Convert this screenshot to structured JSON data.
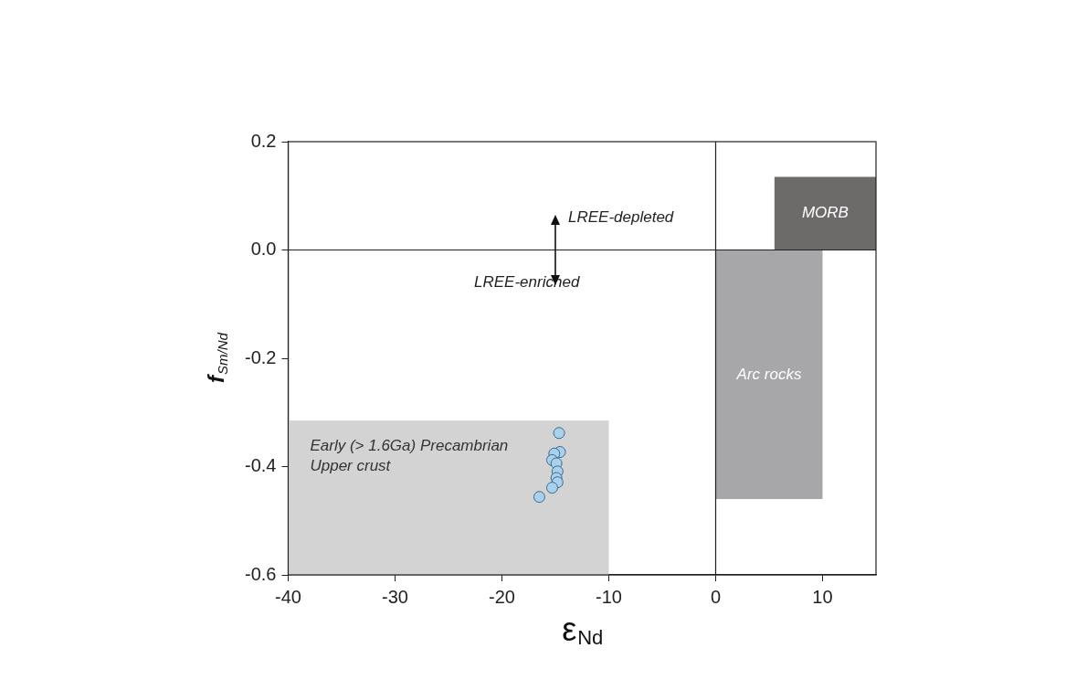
{
  "chart_data": {
    "type": "scatter",
    "x_label": "εNd",
    "y_label": "fSm/Nd",
    "xlim": [
      -40,
      15
    ],
    "xticks": [
      -40,
      -30,
      -20,
      -10,
      0,
      10
    ],
    "ylim": [
      -0.6,
      0.2
    ],
    "yticks": [
      -0.6,
      -0.4,
      -0.2,
      {
        "value": 0,
        "label": "0.0"
      },
      0.2
    ],
    "grid": false,
    "legend": false,
    "data_labels": false,
    "series": [
      {
        "color": "#a9d1ee",
        "marker": "circle",
        "x": [
          -16.5,
          -14.65,
          -14.57,
          -15.1,
          -15.3,
          -14.9,
          -14.8,
          -14.9,
          -14.8,
          -15.3
        ],
        "values": [
          -0.456,
          -0.338,
          -0.373,
          -0.376,
          -0.388,
          -0.394,
          -0.409,
          -0.421,
          -0.429,
          -0.439
        ]
      }
    ],
    "regions": [
      {
        "label": [
          "Early (> 1.6Ga) Precambrian",
          "Upper crust"
        ],
        "x": [
          -40,
          -10
        ],
        "y": [
          -0.6,
          -0.315
        ],
        "color": "#d3d3d3"
      },
      {
        "label": [
          "Arc rocks"
        ],
        "x": [
          0,
          10
        ],
        "y": [
          -0.46,
          0
        ],
        "color": "#a7a7a9"
      },
      {
        "label": [
          "MORB"
        ],
        "x": [
          5.5,
          15
        ],
        "y": [
          0,
          0.135
        ],
        "color": "#6d6a6a"
      }
    ],
    "reference_lines": {
      "x": [
        0
      ],
      "y": [
        0
      ]
    },
    "annotations": [
      {
        "text": "LREE-depleted",
        "x": -13.8,
        "y": 0.06
      },
      {
        "text": "LREE-enriched",
        "x": -22.6,
        "y": -0.06
      }
    ],
    "arrow": {
      "x": -15,
      "y_from": 0.065,
      "y_to": -0.065
    }
  }
}
